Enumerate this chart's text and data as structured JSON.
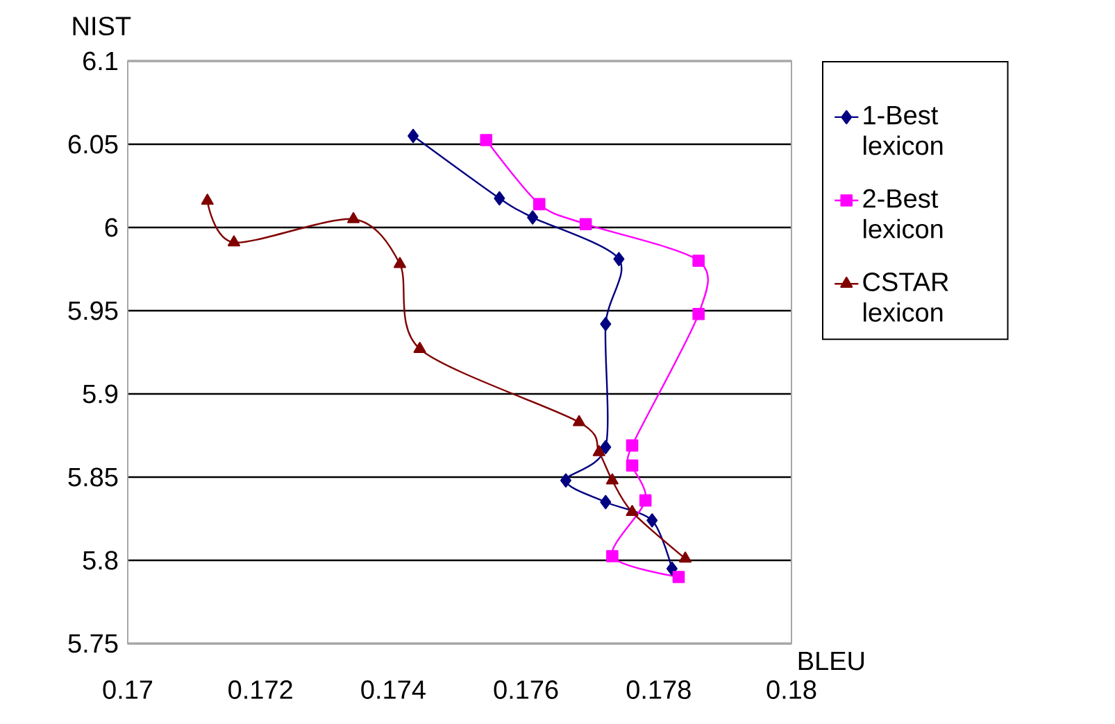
{
  "chart_data": {
    "type": "line",
    "xlabel": "BLEU",
    "ylabel": "NIST",
    "xlim": [
      0.17,
      0.18
    ],
    "ylim": [
      5.75,
      6.1
    ],
    "xticks": [
      0.17,
      0.172,
      0.174,
      0.176,
      0.178,
      0.18
    ],
    "yticks": [
      5.75,
      5.8,
      5.85,
      5.9,
      5.95,
      6,
      6.05,
      6.1
    ],
    "grid": "y",
    "legend": "right",
    "series": [
      {
        "name": "1-Best lexicon",
        "color": "#000080",
        "marker": "diamond",
        "x": [
          0.1743,
          0.1756,
          0.1761,
          0.1774,
          0.1772,
          0.1772,
          0.1766,
          0.1772,
          0.1779,
          0.1782
        ],
        "values": [
          6.055,
          6.0175,
          6.006,
          5.981,
          5.942,
          5.868,
          5.848,
          5.835,
          5.824,
          5.795
        ]
      },
      {
        "name": "2-Best lexicon",
        "color": "#ff00ff",
        "marker": "square",
        "x": [
          0.1754,
          0.1762,
          0.1769,
          0.1786,
          0.1786,
          0.1776,
          0.1776,
          0.1778,
          0.1773,
          0.1783
        ],
        "values": [
          6.0525,
          6.014,
          6.002,
          5.98,
          5.948,
          5.869,
          5.857,
          5.836,
          5.8025,
          5.79
        ]
      },
      {
        "name": "CSTAR lexicon",
        "color": "#800000",
        "marker": "triangle",
        "x": [
          0.1712,
          0.1716,
          0.1734,
          0.1741,
          0.1744,
          0.1768,
          0.1771,
          0.1773,
          0.1776,
          0.1784
        ],
        "values": [
          6.016,
          5.991,
          6.005,
          5.978,
          5.927,
          5.883,
          5.865,
          5.848,
          5.829,
          5.801
        ]
      }
    ]
  }
}
